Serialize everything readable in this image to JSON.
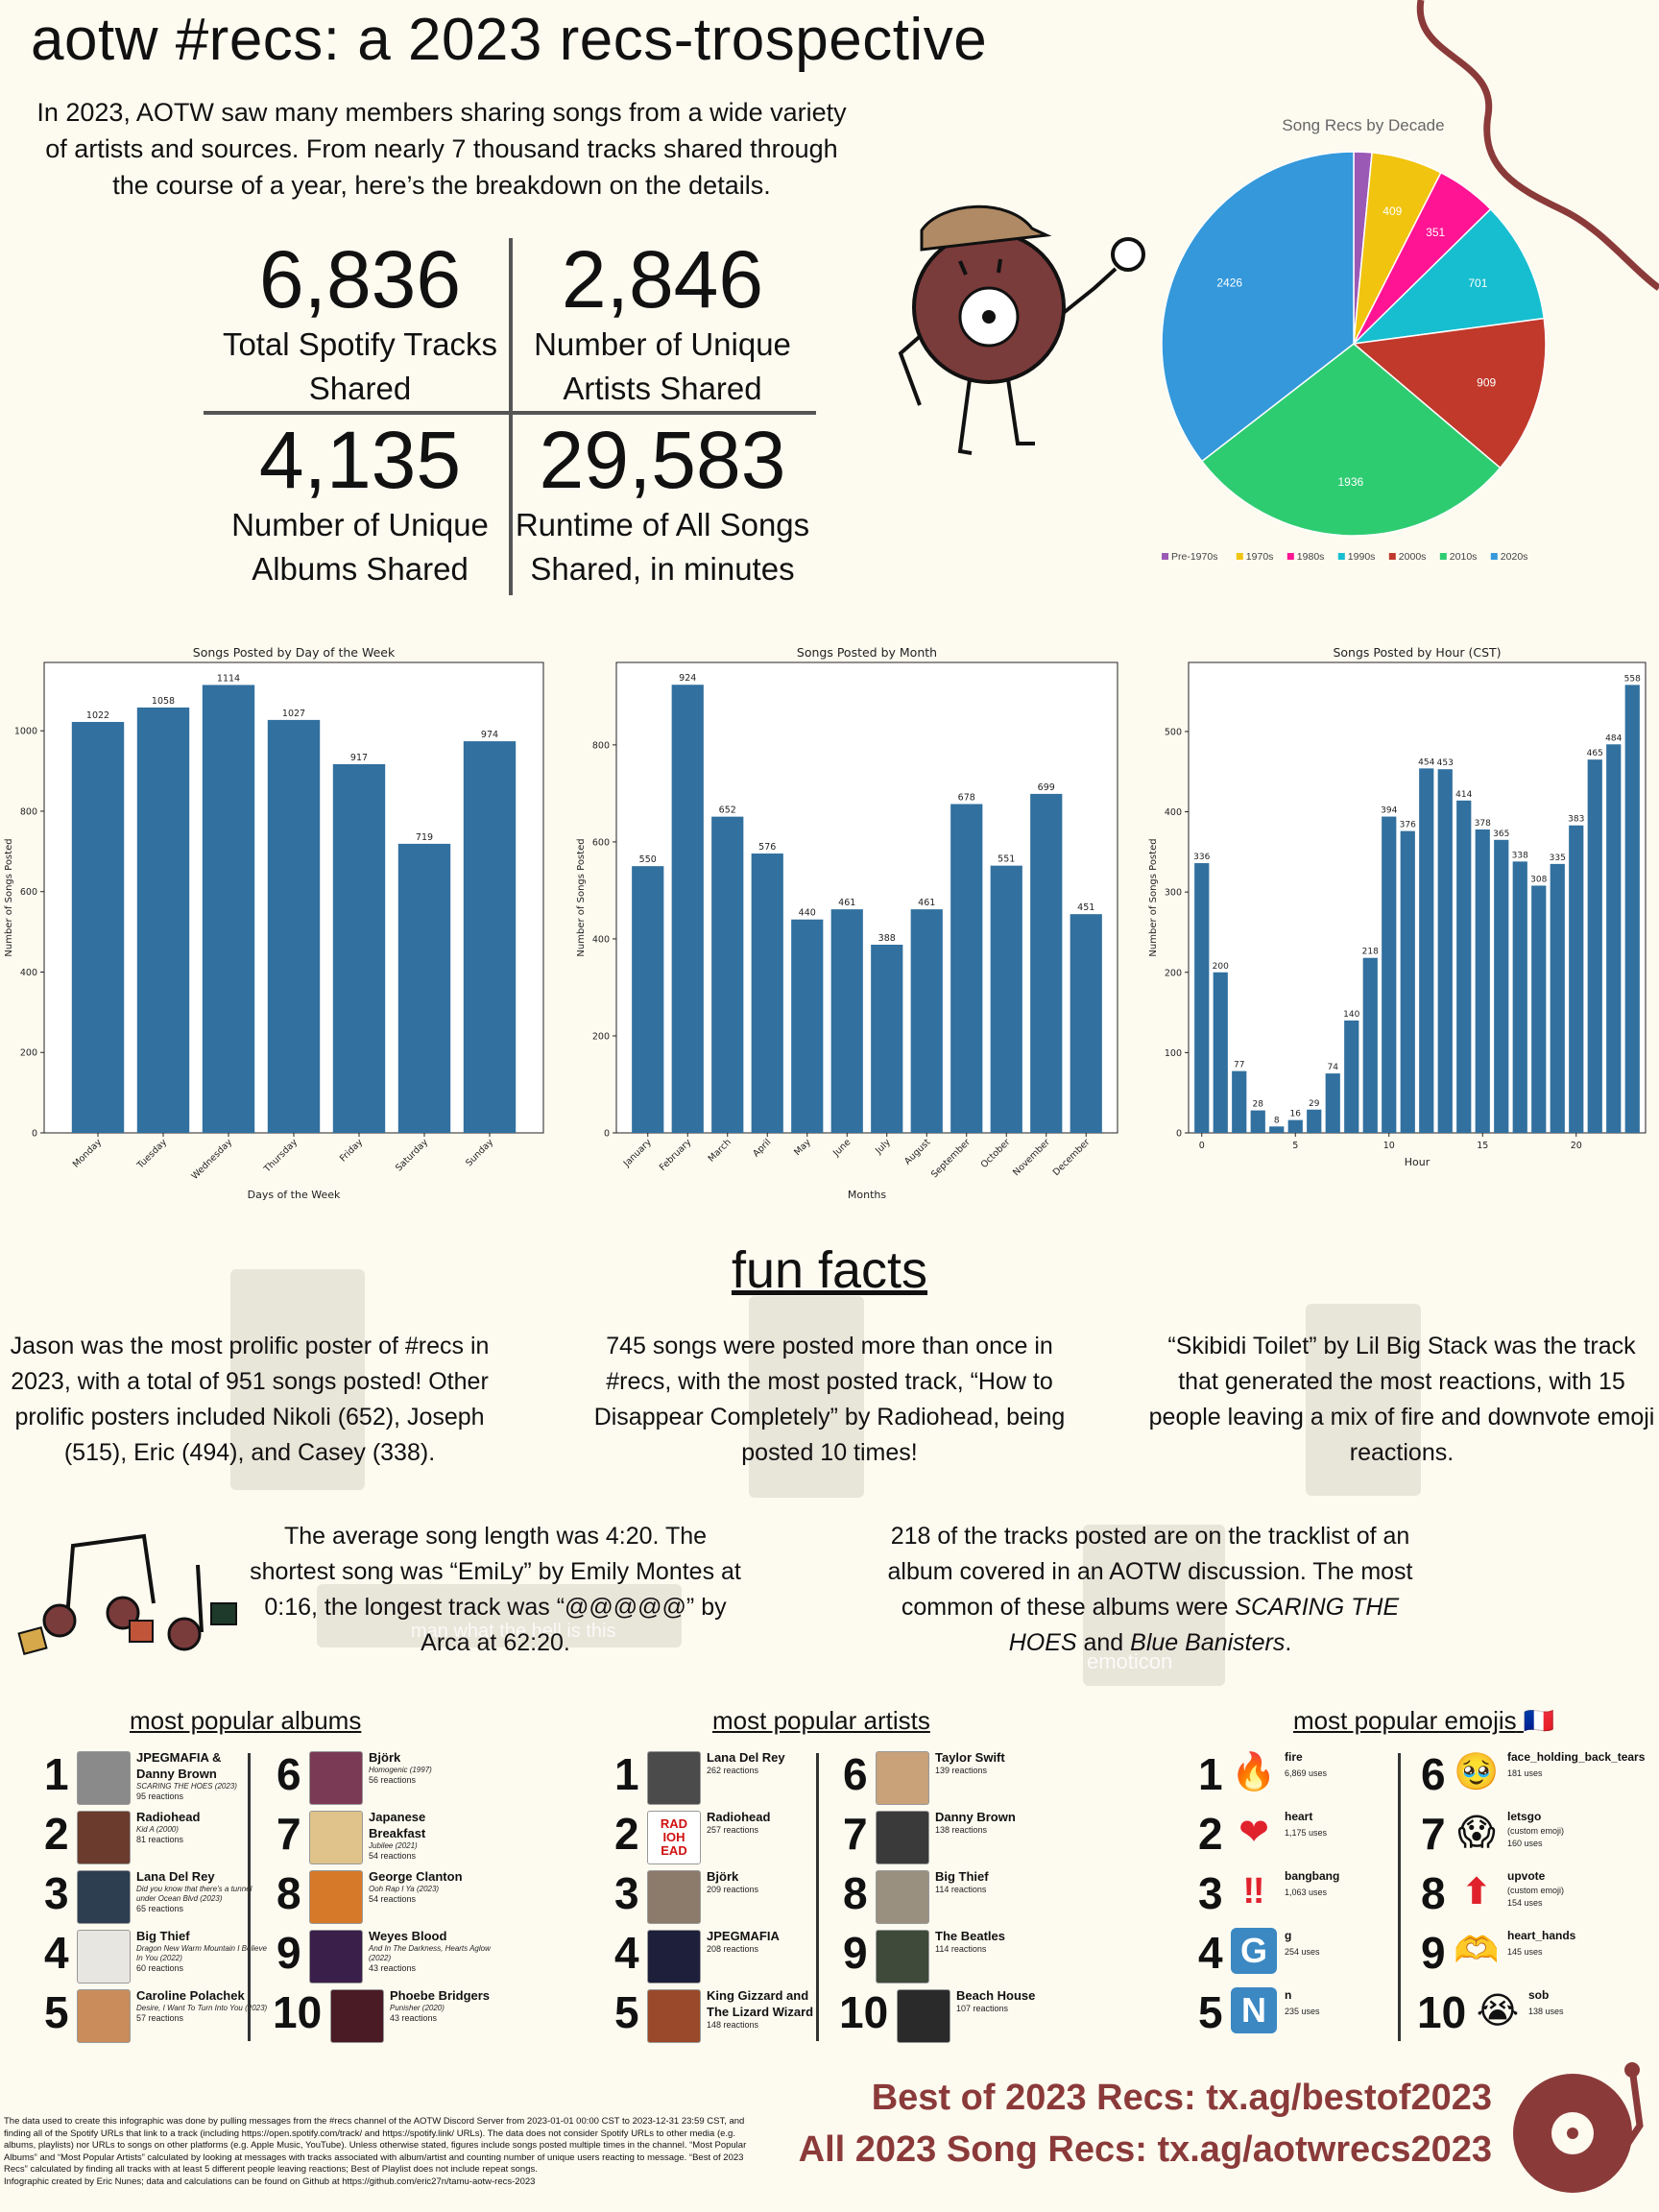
{
  "title": "aotw #recs: a 2023 recs-trospective",
  "intro": "In 2023, AOTW saw many members sharing songs from a wide variety of artists and sources. From nearly 7 thousand tracks shared through the course of a year, here’s the breakdown on the details.",
  "stats": [
    {
      "value": "6,836",
      "label1": "Total Spotify Tracks",
      "label2": "Shared"
    },
    {
      "value": "2,846",
      "label1": "Number of Unique",
      "label2": "Artists Shared"
    },
    {
      "value": "4,135",
      "label1": "Number of Unique",
      "label2": "Albums Shared"
    },
    {
      "value": "29,583",
      "label1": "Runtime of All Songs",
      "label2": "Shared, in minutes"
    }
  ],
  "chart_data": [
    {
      "type": "pie",
      "title": "Song Recs by Decade",
      "categories": [
        "Pre-1970s",
        "1970s",
        "1980s",
        "1990s",
        "2000s",
        "2010s",
        "2020s"
      ],
      "values": [
        104,
        409,
        351,
        701,
        909,
        1936,
        2426
      ],
      "data_labels": [
        "",
        "409",
        "351",
        "701",
        "909",
        "1936",
        "2426"
      ],
      "colors": [
        "#9b59b6",
        "#f1c40f",
        "#ff1493",
        "#17becf",
        "#c0392b",
        "#2ecc71",
        "#3498db"
      ],
      "legend": "bottom"
    },
    {
      "type": "bar",
      "title": "Songs Posted by Day of the Week",
      "categories": [
        "Monday",
        "Tuesday",
        "Wednesday",
        "Thursday",
        "Friday",
        "Saturday",
        "Sunday"
      ],
      "values": [
        1022,
        1058,
        1114,
        1027,
        917,
        719,
        974
      ],
      "xlabel": "Days of the Week",
      "ylabel": "Number of Songs Posted",
      "ylim": [
        0,
        1170
      ],
      "yticks": [
        0,
        200,
        400,
        600,
        800,
        1000
      ]
    },
    {
      "type": "bar",
      "title": "Songs Posted by Month",
      "categories": [
        "January",
        "February",
        "March",
        "April",
        "May",
        "June",
        "July",
        "August",
        "September",
        "October",
        "November",
        "December"
      ],
      "values": [
        550,
        924,
        652,
        576,
        440,
        461,
        388,
        461,
        678,
        551,
        699,
        451
      ],
      "xlabel": "Months",
      "ylabel": "Number of Songs Posted",
      "ylim": [
        0,
        970
      ],
      "yticks": [
        0,
        200,
        400,
        600,
        800
      ]
    },
    {
      "type": "bar",
      "title": "Songs Posted by Hour (CST)",
      "categories": [
        "0",
        "1",
        "2",
        "3",
        "4",
        "5",
        "6",
        "7",
        "8",
        "9",
        "10",
        "11",
        "12",
        "13",
        "14",
        "15",
        "16",
        "17",
        "18",
        "19",
        "20",
        "21",
        "22",
        "23"
      ],
      "values": [
        336,
        200,
        77,
        28,
        8,
        16,
        29,
        74,
        140,
        218,
        394,
        376,
        454,
        453,
        414,
        378,
        365,
        338,
        308,
        335,
        383,
        465,
        484,
        558
      ],
      "xlabel": "Hour",
      "ylabel": "Number of Songs Posted",
      "ylim": [
        0,
        586
      ],
      "yticks": [
        0,
        100,
        200,
        300,
        400,
        500
      ],
      "xticks": [
        "0",
        "5",
        "10",
        "15",
        "20"
      ]
    }
  ],
  "funfacts": {
    "heading": "fun facts",
    "f1": "Jason was the most prolific poster of #recs in 2023, with a total of 951 songs posted! Other prolific posters included Nikoli (652), Joseph (515), Eric (494), and Casey (338).",
    "f2": "745 songs were posted more than once in #recs, with the most posted track, “How to Disappear Completely” by Radiohead, being posted 10 times!",
    "f3": "“Skibidi Toilet” by Lil Big Stack was the track that generated the most reactions, with 15 people leaving a mix of fire and downvote emoji reactions.",
    "f4": "The average song length was 4:20. The shortest song was “EmiLy” by Emily Montes at 0:16, the longest track was “@@@@@” by Arca at 62:20.",
    "f5a": "218 of the tracks posted are on the tracklist of an album covered in an AOTW discussion. The most common of these albums were",
    "f5b": "SCARING THE HOES",
    "f5c": " and ",
    "f5d": "Blue Banisters",
    "f5e": "."
  },
  "albums": {
    "heading": "most popular albums",
    "items": [
      {
        "rank": "1",
        "title": "JPEGMAFIA &",
        "title2": "Danny Brown",
        "sub": "SCARING THE HOES (2023)",
        "sub2": "",
        "count": "95 reactions",
        "color": "#8a8a8a"
      },
      {
        "rank": "2",
        "title": "Radiohead",
        "title2": "",
        "sub": "Kid A (2000)",
        "sub2": "",
        "count": "81 reactions",
        "color": "#6b3b2e"
      },
      {
        "rank": "3",
        "title": "Lana Del Rey",
        "title2": "",
        "sub": "Did you know that there’s a tunnel",
        "sub2": "under Ocean Blvd (2023)",
        "count": "65 reactions",
        "color": "#2c3e50"
      },
      {
        "rank": "4",
        "title": "Big Thief",
        "title2": "",
        "sub": "Dragon New Warm Mountain I Believe",
        "sub2": "In You (2022)",
        "count": "60 reactions",
        "color": "#e8e6e1"
      },
      {
        "rank": "5",
        "title": "Caroline Polachek",
        "title2": "",
        "sub": "Desire, I Want To Turn Into You (2023)",
        "sub2": "",
        "count": "57 reactions",
        "color": "#c98c5a"
      },
      {
        "rank": "6",
        "title": "Björk",
        "title2": "",
        "sub": "Homogenic (1997)",
        "sub2": "",
        "count": "56 reactions",
        "color": "#7a3a55"
      },
      {
        "rank": "7",
        "title": "Japanese",
        "title2": "Breakfast",
        "sub": "Jubilee (2021)",
        "sub2": "",
        "count": "54 reactions",
        "color": "#e0c38a"
      },
      {
        "rank": "8",
        "title": "George Clanton",
        "title2": "",
        "sub": "Ooh Rap I Ya (2023)",
        "sub2": "",
        "count": "54 reactions",
        "color": "#d67a2a"
      },
      {
        "rank": "9",
        "title": "Weyes Blood",
        "title2": "",
        "sub": "And In The Darkness, Hearts Aglow",
        "sub2": "(2022)",
        "count": "43 reactions",
        "color": "#3a1f4a"
      },
      {
        "rank": "10",
        "title": "Phoebe Bridgers",
        "title2": "",
        "sub": "Punisher (2020)",
        "sub2": "",
        "count": "43 reactions",
        "color": "#4a1a25"
      }
    ]
  },
  "artists": {
    "heading": "most popular artists",
    "items": [
      {
        "rank": "1",
        "title": "Lana Del Rey",
        "title2": "",
        "count": "262 reactions",
        "color": "#4b4b4b"
      },
      {
        "rank": "2",
        "title": "Radiohead",
        "title2": "",
        "count": "257 reactions",
        "color": "#ffffff",
        "logo": "RAD IOH EAD"
      },
      {
        "rank": "3",
        "title": "Björk",
        "title2": "",
        "count": "209 reactions",
        "color": "#8c7a6b"
      },
      {
        "rank": "4",
        "title": "JPEGMAFIA",
        "title2": "",
        "count": "208 reactions",
        "color": "#1e1f3a"
      },
      {
        "rank": "5",
        "title": "King Gizzard and",
        "title2": "The Lizard Wizard",
        "count": "148 reactions",
        "color": "#9a4a2a"
      },
      {
        "rank": "6",
        "title": "Taylor Swift",
        "title2": "",
        "count": "139 reactions",
        "color": "#c9a27a"
      },
      {
        "rank": "7",
        "title": "Danny Brown",
        "title2": "",
        "count": "138 reactions",
        "color": "#3a3a3a"
      },
      {
        "rank": "8",
        "title": "Big Thief",
        "title2": "",
        "count": "114 reactions",
        "color": "#9a9080"
      },
      {
        "rank": "9",
        "title": "The Beatles",
        "title2": "",
        "count": "114 reactions",
        "color": "#3f4a3a"
      },
      {
        "rank": "10",
        "title": "Beach House",
        "title2": "",
        "count": "107 reactions",
        "color": "#2a2a2a"
      }
    ]
  },
  "emojis": {
    "heading": "most popular emojis",
    "flag": "🇫🇷",
    "items": [
      {
        "rank": "1",
        "glyph": "🔥",
        "name": "fire",
        "sub": "",
        "count": "6,869 uses"
      },
      {
        "rank": "2",
        "glyph": "❤",
        "name": "heart",
        "sub": "",
        "count": "1,175 uses"
      },
      {
        "rank": "3",
        "glyph": "‼",
        "name": "bangbang",
        "sub": "",
        "count": "1,063 uses"
      },
      {
        "rank": "4",
        "glyph": "G",
        "name": "g",
        "sub": "",
        "count": "254 uses"
      },
      {
        "rank": "5",
        "glyph": "N",
        "name": "n",
        "sub": "",
        "count": "235 uses"
      },
      {
        "rank": "6",
        "glyph": "🥹",
        "name": "face_holding_back_tears",
        "sub": "",
        "count": "181 uses"
      },
      {
        "rank": "7",
        "glyph": "😱",
        "name": "letsgo",
        "sub": "(custom emoji)",
        "count": "160 uses"
      },
      {
        "rank": "8",
        "glyph": "⬆",
        "name": "upvote",
        "sub": "(custom emoji)",
        "count": "154 uses"
      },
      {
        "rank": "9",
        "glyph": "🫶",
        "name": "heart_hands",
        "sub": "",
        "count": "145 uses"
      },
      {
        "rank": "10",
        "glyph": "😭",
        "name": "sob",
        "sub": "",
        "count": "138 uses"
      }
    ]
  },
  "links": {
    "line1": "Best of 2023 Recs: tx.ag/bestof2023",
    "line2": "All 2023 Song Recs: tx.ag/aotwrecs2023"
  },
  "footnote": "The data used to create this infographic was done by pulling messages from the #recs channel of the AOTW Discord Server from 2023-01-01 00:00 CST to 2023-12-31 23:59 CST, and finding all of the Spotify URLs that link to a track (including https://open.spotify.com/track/ and https://spotify.link/ URLs). The data does not consider Spotify URLs to other media (e.g. albums, playlists) nor URLs to songs on other platforms (e.g. Apple Music, YouTube). Unless otherwise stated, figures include songs posted multiple times in the channel. “Most Popular Albums” and “Most Popular Artists” calculated by looking at messages with tracks associated with album/artist and counting number of unique users reacting to message. “Best of 2023 Recs” calculated by finding all tracks with at least 5 different people leaving reactions; Best of Playlist does not include repeat songs.",
  "footnote2": "Infographic created by Eric Nunes; data and calculations can be found on Github at https://github.com/eric27n/tamu-aotw-recs-2023",
  "ghost_text": {
    "g1": "man what the hell is this",
    "g2": "emoticon"
  },
  "colors": {
    "accent": "#8b3a3a",
    "bar": "#31709f",
    "background": "#fdfbf0"
  }
}
